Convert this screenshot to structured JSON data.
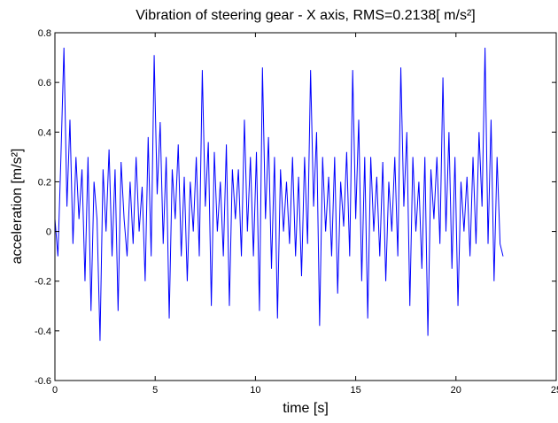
{
  "chart_data": {
    "type": "line",
    "title": "Vibration of steering gear - X axis,  RMS=0.2138[ m/s²]",
    "x_label": "time [s]",
    "y_label": "acceleration [m/s²]",
    "x": [
      0,
      0.15,
      0.3,
      0.45,
      0.6,
      0.75,
      0.9,
      1.05,
      1.2,
      1.35,
      1.5,
      1.65,
      1.8,
      1.95,
      2.1,
      2.25,
      2.4,
      2.55,
      2.7,
      2.85,
      3,
      3.15,
      3.3,
      3.45,
      3.6,
      3.75,
      3.9,
      4.05,
      4.2,
      4.35,
      4.5,
      4.65,
      4.8,
      4.95,
      5.1,
      5.25,
      5.4,
      5.55,
      5.7,
      5.85,
      6,
      6.15,
      6.3,
      6.45,
      6.6,
      6.75,
      6.9,
      7.05,
      7.2,
      7.35,
      7.5,
      7.65,
      7.8,
      7.95,
      8.1,
      8.25,
      8.4,
      8.55,
      8.7,
      8.85,
      9,
      9.15,
      9.3,
      9.45,
      9.6,
      9.75,
      9.9,
      10.05,
      10.2,
      10.35,
      10.5,
      10.65,
      10.8,
      10.95,
      11.1,
      11.25,
      11.4,
      11.55,
      11.7,
      11.85,
      12,
      12.15,
      12.3,
      12.45,
      12.6,
      12.75,
      12.9,
      13.05,
      13.2,
      13.35,
      13.5,
      13.65,
      13.8,
      13.95,
      14.1,
      14.25,
      14.4,
      14.55,
      14.7,
      14.85,
      15,
      15.15,
      15.3,
      15.45,
      15.6,
      15.75,
      15.9,
      16.05,
      16.2,
      16.35,
      16.5,
      16.65,
      16.8,
      16.95,
      17.1,
      17.25,
      17.4,
      17.55,
      17.7,
      17.85,
      18,
      18.15,
      18.3,
      18.45,
      18.6,
      18.75,
      18.9,
      19.05,
      19.2,
      19.35,
      19.5,
      19.65,
      19.8,
      19.95,
      20.1,
      20.25,
      20.4,
      20.55,
      20.7,
      20.85,
      21,
      21.15,
      21.3,
      21.45,
      21.6,
      21.75,
      21.9,
      22.05,
      22.2,
      22.35
    ],
    "series": [
      {
        "color": "#0000ff",
        "values": [
          0.05,
          -0.1,
          0.3,
          0.74,
          0.1,
          0.45,
          -0.05,
          0.3,
          0.05,
          0.25,
          -0.2,
          0.3,
          -0.32,
          0.2,
          0.05,
          -0.44,
          0.25,
          0,
          0.33,
          -0.1,
          0.25,
          -0.32,
          0.28,
          0.05,
          -0.1,
          0.2,
          -0.05,
          0.3,
          0,
          0.18,
          -0.2,
          0.38,
          -0.1,
          0.71,
          0.15,
          0.44,
          -0.05,
          0.3,
          -0.35,
          0.25,
          0.05,
          0.35,
          -0.1,
          0.22,
          -0.2,
          0.2,
          0,
          0.3,
          -0.1,
          0.65,
          0.1,
          0.36,
          -0.3,
          0.32,
          0,
          0.2,
          -0.1,
          0.35,
          -0.3,
          0.25,
          0.05,
          0.25,
          -0.1,
          0.45,
          0,
          0.3,
          -0.1,
          0.32,
          -0.32,
          0.66,
          0.05,
          0.38,
          -0.15,
          0.3,
          -0.35,
          0.25,
          0,
          0.2,
          -0.05,
          0.3,
          -0.1,
          0.22,
          -0.18,
          0.3,
          -0.05,
          0.65,
          0.1,
          0.4,
          -0.38,
          0.3,
          0,
          0.22,
          -0.1,
          0.3,
          -0.25,
          0.2,
          0.02,
          0.32,
          -0.1,
          0.65,
          0.05,
          0.45,
          -0.2,
          0.3,
          -0.35,
          0.3,
          0,
          0.22,
          -0.1,
          0.28,
          -0.2,
          0.2,
          0,
          0.3,
          -0.1,
          0.66,
          0.1,
          0.4,
          -0.3,
          0.3,
          0,
          0.2,
          -0.15,
          0.3,
          -0.42,
          0.25,
          0.05,
          0.3,
          -0.05,
          0.62,
          0,
          0.4,
          -0.15,
          0.3,
          -0.3,
          0.2,
          0,
          0.22,
          -0.1,
          0.3,
          -0.05,
          0.4,
          0.1,
          0.74,
          -0.05,
          0.45,
          -0.2,
          0.3,
          -0.05,
          -0.1
        ]
      }
    ],
    "xlim": [
      0,
      25
    ],
    "xticks": [
      0,
      5,
      10,
      15,
      20,
      25
    ],
    "ylim": [
      -0.6,
      0.8
    ],
    "yticks": [
      -0.6,
      -0.4,
      -0.2,
      0,
      0.2,
      0.4,
      0.6,
      0.8
    ],
    "grid": false
  }
}
